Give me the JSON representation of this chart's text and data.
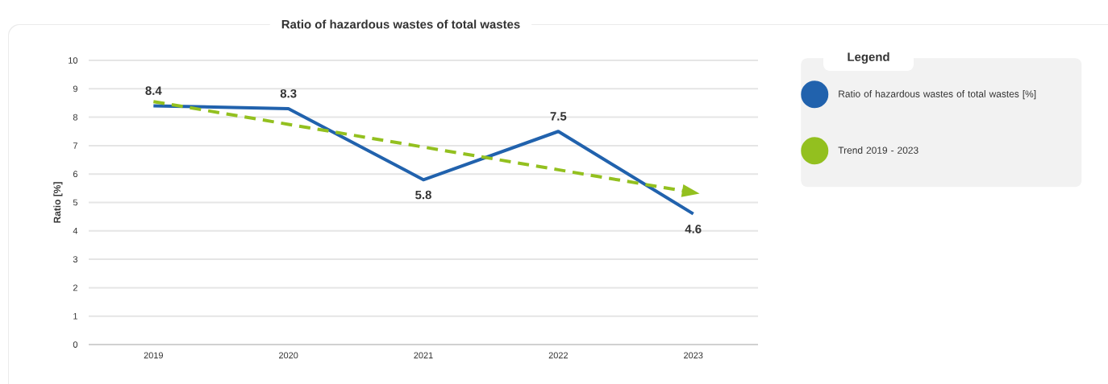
{
  "chart_data": {
    "type": "line",
    "title": "Ratio of hazardous wastes of total wastes",
    "ylabel": "Ratio [%]",
    "legend_title": "Legend",
    "categories": [
      "2019",
      "2020",
      "2021",
      "2022",
      "2023"
    ],
    "series": [
      {
        "name": "Ratio of hazardous wastes of total wastes [%]",
        "color": "#2162ad",
        "line_style": "solid",
        "values": [
          8.4,
          8.3,
          5.8,
          7.5,
          4.6
        ],
        "value_labels": [
          "8.4",
          "8.3",
          "5.8",
          "7.5",
          "4.6"
        ]
      },
      {
        "name": "Trend 2019 - 2023",
        "color": "#93c01f",
        "line_style": "dashed",
        "values": [
          8.55,
          7.75,
          6.95,
          6.15,
          5.35
        ]
      }
    ],
    "ylim": [
      0,
      10
    ],
    "yticks": [
      0,
      1,
      2,
      3,
      4,
      5,
      6,
      7,
      8,
      9,
      10
    ],
    "grid": "y",
    "legend": "right",
    "marker": "none"
  }
}
